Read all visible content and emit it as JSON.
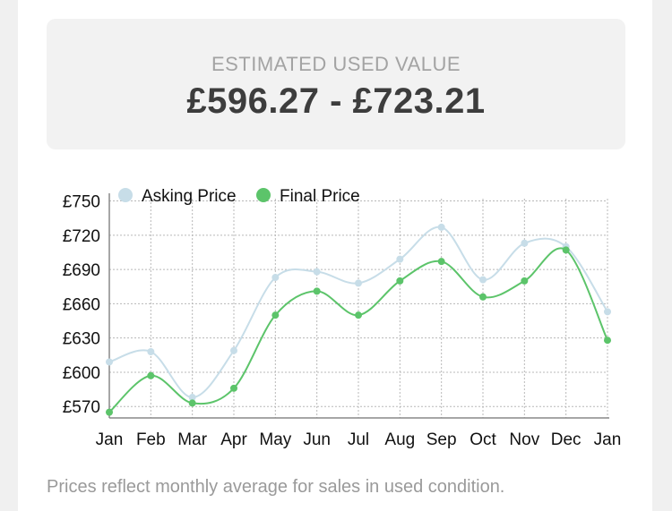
{
  "valuation": {
    "label": "ESTIMATED USED VALUE",
    "range": "£596.27 - £723.21"
  },
  "footnote": "Prices reflect monthly average for sales in used condition.",
  "colors": {
    "asking": "#c7dde8",
    "final": "#5cc46a",
    "grid": "#b8b8b8",
    "axis": "#888888"
  },
  "chart_data": {
    "type": "line",
    "categories": [
      "Jan",
      "Feb",
      "Mar",
      "Apr",
      "May",
      "Jun",
      "Jul",
      "Aug",
      "Sep",
      "Oct",
      "Nov",
      "Dec",
      "Jan"
    ],
    "series": [
      {
        "name": "Asking Price",
        "color": "#c7dde8",
        "values": [
          609,
          618,
          578,
          619,
          683,
          688,
          678,
          699,
          727,
          681,
          713,
          710,
          653
        ]
      },
      {
        "name": "Final Price",
        "color": "#5cc46a",
        "values": [
          565,
          597,
          573,
          586,
          650,
          671,
          650,
          680,
          697,
          666,
          680,
          707,
          628
        ]
      }
    ],
    "yticks": [
      "£750",
      "£720",
      "£690",
      "£660",
      "£630",
      "£600",
      "£570"
    ],
    "ylim": [
      560,
      752
    ],
    "grid": true,
    "legend": "top-left"
  }
}
